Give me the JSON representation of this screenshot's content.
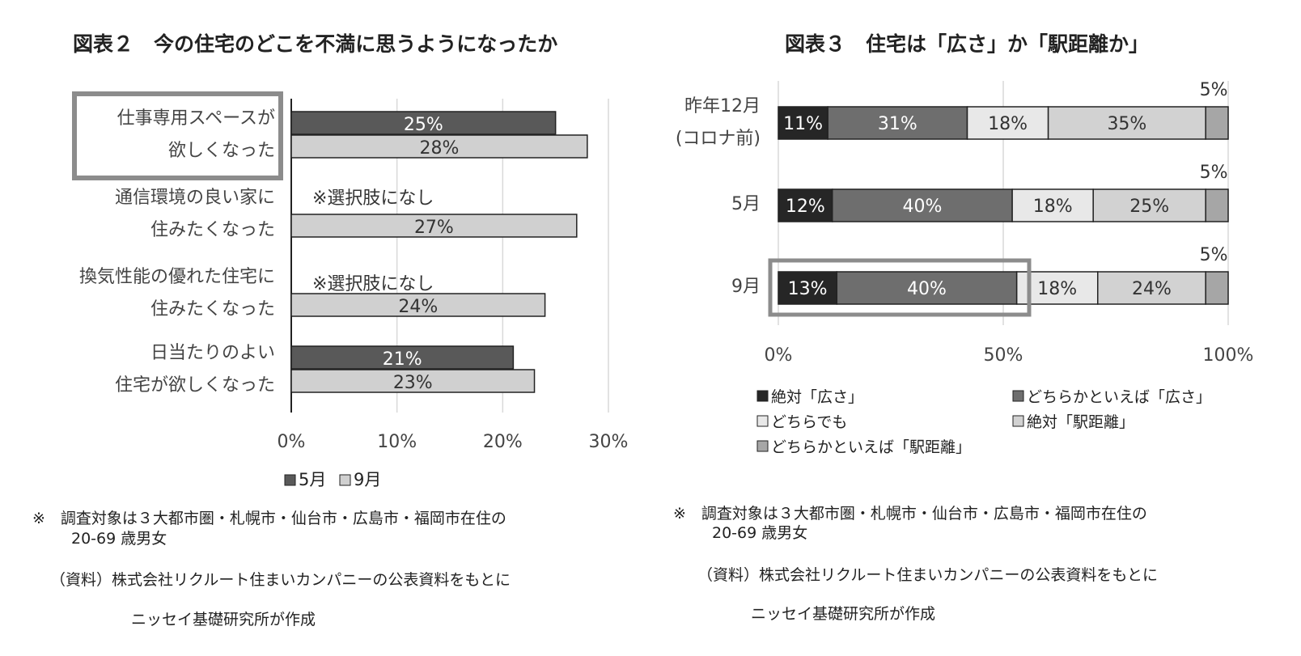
{
  "chart_data": [
    {
      "type": "bar",
      "orientation": "horizontal",
      "title": "図表２　今の住宅のどこを不満に思うようになったか",
      "categories": [
        [
          "仕事専用スペースが",
          "欲しくなった"
        ],
        [
          "通信環境の良い家に",
          "住みたくなった"
        ],
        [
          "換気性能の優れた住宅に",
          "住みたくなった"
        ],
        [
          "日当たりのよい",
          "住宅が欲しくなった"
        ]
      ],
      "series": [
        {
          "name": "5月",
          "values": [
            25,
            null,
            null,
            21
          ],
          "color": "#595959"
        },
        {
          "name": "9月",
          "values": [
            28,
            27,
            24,
            23
          ],
          "color": "#d0d0d0"
        }
      ],
      "data_labels": [
        [
          "25%",
          "",
          "",
          "21%"
        ],
        [
          "28%",
          "27%",
          "24%",
          "23%"
        ]
      ],
      "annotations": [
        "※選択肢になし",
        "※選択肢になし"
      ],
      "xticks": [
        "0%",
        "10%",
        "20%",
        "30%"
      ],
      "xlim": [
        0,
        30
      ],
      "legend_position": "bottom",
      "highlight_category": 0,
      "grid": true
    },
    {
      "type": "bar",
      "orientation": "horizontal",
      "stacked": true,
      "title": "図表３　住宅は「広さ」か「駅距離か」",
      "categories": [
        [
          "昨年12月",
          "(コロナ前)"
        ],
        [
          "5月"
        ],
        [
          "9月"
        ]
      ],
      "series": [
        {
          "name": "絶対「広さ」",
          "values": [
            11,
            12,
            13
          ],
          "color": "#262626"
        },
        {
          "name": "どちらかといえば「広さ」",
          "values": [
            31,
            40,
            40
          ],
          "color": "#6e6e6e"
        },
        {
          "name": "どちらでも",
          "values": [
            18,
            18,
            18
          ],
          "color": "#e8e8e8"
        },
        {
          "name": "絶対「駅距離」",
          "values": [
            35,
            25,
            24
          ],
          "color": "#d2d2d2"
        },
        {
          "name": "どちらかといえば「駅距離」",
          "values": [
            5,
            5,
            5
          ],
          "color": "#a6a6a6"
        }
      ],
      "data_labels": [
        [
          "11%",
          "12%",
          "13%"
        ],
        [
          "31%",
          "40%",
          "40%"
        ],
        [
          "18%",
          "18%",
          "18%"
        ],
        [
          "35%",
          "25%",
          "24%"
        ],
        [
          "5%",
          "5%",
          "5%"
        ]
      ],
      "xticks": [
        "0%",
        "50%",
        "100%"
      ],
      "xlim": [
        0,
        100
      ],
      "legend_position": "bottom",
      "highlight_category": 2,
      "grid": true
    }
  ],
  "left_notes": {
    "note1_line1": "※　調査対象は３大都市圏・札幌市・仙台市・広島市・福岡市在住の",
    "note1_line2": "20-69 歳男女",
    "source_line1": "（資料）株式会社リクルート住まいカンパニーの公表資料をもとに",
    "source_line2": "ニッセイ基礎研究所が作成"
  },
  "right_notes": {
    "note1_line1": "※　調査対象は３大都市圏・札幌市・仙台市・広島市・福岡市在住の",
    "note1_line2": "20-69 歳男女",
    "source_line1": "（資料）株式会社リクルート住まいカンパニーの公表資料をもとに",
    "source_line2": "ニッセイ基礎研究所が作成"
  }
}
